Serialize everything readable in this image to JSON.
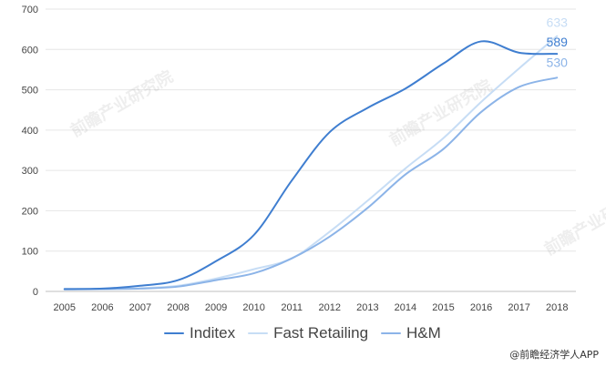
{
  "chart_data": {
    "type": "line",
    "x": [
      "2005",
      "2006",
      "2007",
      "2008",
      "2009",
      "2010",
      "2011",
      "2012",
      "2013",
      "2014",
      "2015",
      "2016",
      "2017",
      "2018"
    ],
    "ylim": [
      0,
      700
    ],
    "yticks": [
      0,
      100,
      200,
      300,
      400,
      500,
      600,
      700
    ],
    "grid": "horizontal",
    "legend": "bottom",
    "series": [
      {
        "name": "Inditex",
        "color": "#3f7ed0",
        "values": [
          6,
          7,
          14,
          28,
          75,
          140,
          275,
          395,
          455,
          503,
          565,
          620,
          592,
          589
        ],
        "end_label": "589"
      },
      {
        "name": "Fast Retailing",
        "color": "#c7ddf5",
        "values": [
          6,
          6,
          8,
          14,
          32,
          55,
          82,
          148,
          225,
          305,
          380,
          470,
          553,
          633
        ],
        "end_label": "633"
      },
      {
        "name": "H&M",
        "color": "#8cb4e8",
        "values": [
          5,
          6,
          7,
          12,
          28,
          45,
          82,
          136,
          207,
          290,
          353,
          445,
          507,
          530
        ],
        "end_label": "530"
      }
    ]
  },
  "watermark": "前瞻产业研究院",
  "source": "@前瞻经济学人APP"
}
